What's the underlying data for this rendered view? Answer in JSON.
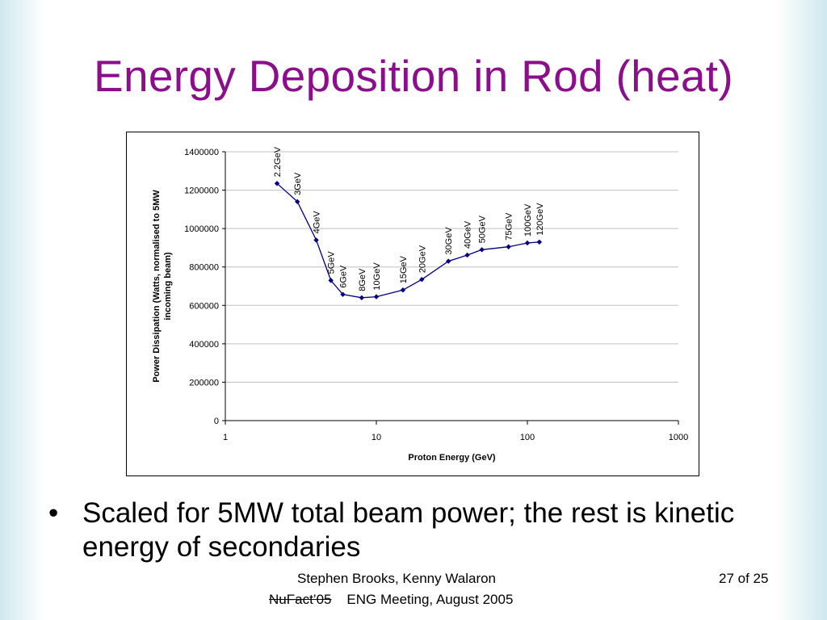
{
  "slide": {
    "title": "Energy Deposition in Rod (heat)",
    "bullet_marker": "•",
    "bullet": "Scaled for 5MW total beam power; the rest is kinetic energy of secondaries",
    "footer": {
      "authors": "Stephen Brooks, Kenny Walaron",
      "event_struck": "NuFact’05",
      "event": "ENG Meeting, August 2005"
    },
    "page": "27 of 25"
  },
  "chart_data": {
    "type": "scatter",
    "xlabel": "Proton Energy (GeV)",
    "ylabel": "Power Dissipation (Watts, normalised to 5MW incoming beam)",
    "x_scale": "log",
    "xlim": [
      1,
      1000
    ],
    "ylim": [
      0,
      1400000
    ],
    "x_ticks": [
      "1",
      "10",
      "100",
      "1000"
    ],
    "y_ticks": [
      "0",
      "200000",
      "400000",
      "600000",
      "800000",
      "1000000",
      "1200000",
      "1400000"
    ],
    "grid": "horizontal",
    "series_color": "#000080",
    "points": [
      {
        "x": 2.2,
        "y": 1235000,
        "label": "2.2GeV"
      },
      {
        "x": 3,
        "y": 1140000,
        "label": "3GeV"
      },
      {
        "x": 4,
        "y": 940000,
        "label": "4GeV"
      },
      {
        "x": 5,
        "y": 730000,
        "label": "5GeV"
      },
      {
        "x": 6,
        "y": 657000,
        "label": "6GeV"
      },
      {
        "x": 8,
        "y": 640000,
        "label": "8GeV"
      },
      {
        "x": 10,
        "y": 645000,
        "label": "10GeV"
      },
      {
        "x": 15,
        "y": 680000,
        "label": "15GeV"
      },
      {
        "x": 20,
        "y": 735000,
        "label": "20GeV"
      },
      {
        "x": 30,
        "y": 830000,
        "label": "30GeV"
      },
      {
        "x": 40,
        "y": 862000,
        "label": "40GeV"
      },
      {
        "x": 50,
        "y": 890000,
        "label": "50GeV"
      },
      {
        "x": 75,
        "y": 905000,
        "label": "75GeV"
      },
      {
        "x": 100,
        "y": 925000,
        "label": "100GeV"
      },
      {
        "x": 120,
        "y": 930000,
        "label": "120GeV"
      }
    ]
  }
}
